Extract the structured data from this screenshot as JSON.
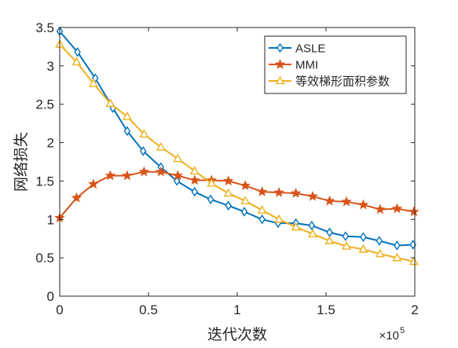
{
  "chart_data": {
    "type": "line",
    "title": "",
    "xlabel": "迭代次数",
    "ylabel": "网络损失",
    "xlim": [
      0,
      200000
    ],
    "ylim": [
      0,
      3.5
    ],
    "x_exponent_label": "×10",
    "x_exponent_power": "5",
    "x_ticks": [
      0,
      50000,
      100000,
      150000,
      200000
    ],
    "x_tick_labels": [
      "0",
      "0.5",
      "1",
      "1.5",
      "2"
    ],
    "y_ticks": [
      0,
      0.5,
      1,
      1.5,
      2,
      2.5,
      3,
      3.5
    ],
    "y_tick_labels": [
      "0",
      "0.5",
      "1",
      "1.5",
      "2",
      "2.5",
      "3",
      "3.5"
    ],
    "grid": false,
    "legend_position": "top-right",
    "series": [
      {
        "name": "ASLE",
        "color": "#0072BD",
        "marker": "diamond",
        "x": [
          0,
          10000,
          20000,
          30000,
          38000,
          47000,
          57000,
          66000,
          76000,
          85000,
          95000,
          104000,
          114000,
          123000,
          133000,
          142000,
          152000,
          161000,
          171000,
          180000,
          190000,
          199000
        ],
        "y": [
          3.45,
          3.18,
          2.84,
          2.45,
          2.15,
          1.89,
          1.68,
          1.5,
          1.36,
          1.26,
          1.18,
          1.1,
          1.0,
          0.95,
          0.95,
          0.92,
          0.83,
          0.78,
          0.77,
          0.72,
          0.66,
          0.67
        ]
      },
      {
        "name": "MMI",
        "color": "#D95319",
        "marker": "star",
        "x": [
          0,
          9500,
          19000,
          28500,
          38000,
          47500,
          57000,
          66500,
          76000,
          85500,
          95000,
          104500,
          114000,
          123500,
          133000,
          142500,
          152000,
          161500,
          171000,
          180500,
          190000,
          199500
        ],
        "y": [
          1.02,
          1.28,
          1.46,
          1.57,
          1.57,
          1.62,
          1.62,
          1.57,
          1.51,
          1.51,
          1.5,
          1.44,
          1.36,
          1.35,
          1.34,
          1.3,
          1.24,
          1.23,
          1.19,
          1.13,
          1.14,
          1.1
        ]
      },
      {
        "name": "等效梯形面积参数",
        "color": "#EDB120",
        "marker": "triangle",
        "x": [
          0,
          9500,
          19000,
          28500,
          38000,
          47500,
          57000,
          66500,
          76000,
          85500,
          95000,
          104500,
          114000,
          123500,
          133000,
          142500,
          152000,
          161500,
          171000,
          180500,
          190000,
          199500
        ],
        "y": [
          3.28,
          3.05,
          2.77,
          2.51,
          2.34,
          2.11,
          1.94,
          1.79,
          1.63,
          1.47,
          1.34,
          1.24,
          1.12,
          1.0,
          0.9,
          0.81,
          0.72,
          0.65,
          0.61,
          0.55,
          0.5,
          0.45
        ]
      }
    ]
  }
}
